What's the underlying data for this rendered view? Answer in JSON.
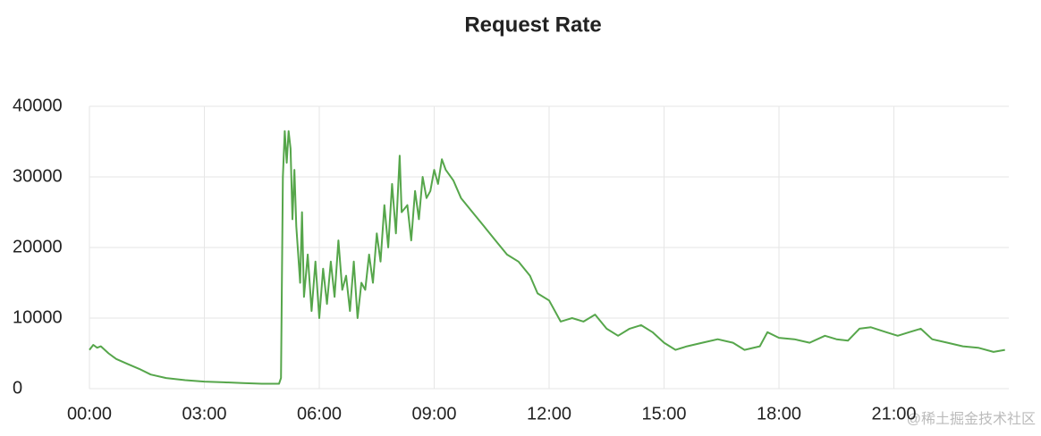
{
  "chart_data": {
    "type": "line",
    "title": "Request Rate",
    "watermark": "@稀土掘金技术社区",
    "xlim": [
      0,
      24
    ],
    "xticks": [
      {
        "value": 0,
        "label": "00:00"
      },
      {
        "value": 3,
        "label": "03:00"
      },
      {
        "value": 6,
        "label": "06:00"
      },
      {
        "value": 9,
        "label": "09:00"
      },
      {
        "value": 12,
        "label": "12:00"
      },
      {
        "value": 15,
        "label": "15:00"
      },
      {
        "value": 18,
        "label": "18:00"
      },
      {
        "value": 21,
        "label": "21:00"
      }
    ],
    "ylim": [
      0,
      40000
    ],
    "yticks": [
      0,
      10000,
      20000,
      30000,
      40000
    ],
    "grid": true,
    "x": [
      0,
      0.1,
      0.2,
      0.3,
      0.5,
      0.7,
      1.0,
      1.3,
      1.6,
      2.0,
      2.5,
      3.0,
      3.5,
      4.0,
      4.5,
      4.95,
      5.0,
      5.05,
      5.1,
      5.15,
      5.2,
      5.25,
      5.3,
      5.35,
      5.4,
      5.5,
      5.55,
      5.6,
      5.7,
      5.8,
      5.9,
      6.0,
      6.1,
      6.2,
      6.3,
      6.4,
      6.5,
      6.6,
      6.7,
      6.8,
      6.9,
      7.0,
      7.1,
      7.2,
      7.3,
      7.4,
      7.5,
      7.6,
      7.7,
      7.8,
      7.9,
      8.0,
      8.1,
      8.15,
      8.3,
      8.4,
      8.5,
      8.6,
      8.7,
      8.8,
      8.9,
      9.0,
      9.1,
      9.2,
      9.3,
      9.5,
      9.7,
      10.0,
      10.3,
      10.6,
      10.9,
      11.2,
      11.5,
      11.7,
      12.0,
      12.3,
      12.6,
      12.9,
      13.2,
      13.5,
      13.8,
      14.1,
      14.4,
      14.7,
      15.0,
      15.3,
      15.6,
      16.0,
      16.4,
      16.8,
      17.1,
      17.5,
      17.7,
      18.0,
      18.4,
      18.8,
      19.2,
      19.5,
      19.8,
      20.1,
      20.4,
      20.8,
      21.1,
      21.4,
      21.7,
      22.0,
      22.4,
      22.8,
      23.2,
      23.6,
      23.9
    ],
    "series": [
      {
        "name": "Request Rate",
        "color": "#56a64b",
        "values": [
          5500,
          6200,
          5800,
          6000,
          5000,
          4200,
          3500,
          2800,
          2000,
          1500,
          1200,
          1000,
          900,
          800,
          700,
          700,
          1500,
          30000,
          36500,
          32000,
          36500,
          34000,
          24000,
          31000,
          23000,
          15000,
          25000,
          13000,
          19000,
          11000,
          18000,
          10000,
          17000,
          12000,
          18000,
          13000,
          21000,
          14000,
          16000,
          11000,
          18000,
          10000,
          15000,
          14000,
          19000,
          15000,
          22000,
          18000,
          26000,
          20000,
          29000,
          22000,
          33000,
          25000,
          26000,
          21000,
          28000,
          24000,
          30000,
          27000,
          28000,
          31000,
          29000,
          32500,
          31000,
          29500,
          27000,
          25000,
          23000,
          21000,
          19000,
          18000,
          16000,
          13500,
          12500,
          9500,
          10000,
          9500,
          10500,
          8500,
          7500,
          8500,
          9000,
          8000,
          6500,
          5500,
          6000,
          6500,
          7000,
          6500,
          5500,
          6000,
          8000,
          7200,
          7000,
          6500,
          7500,
          7000,
          6800,
          8500,
          8700,
          8000,
          7500,
          8000,
          8500,
          7000,
          6500,
          6000,
          5800,
          5200,
          5500
        ]
      }
    ]
  }
}
